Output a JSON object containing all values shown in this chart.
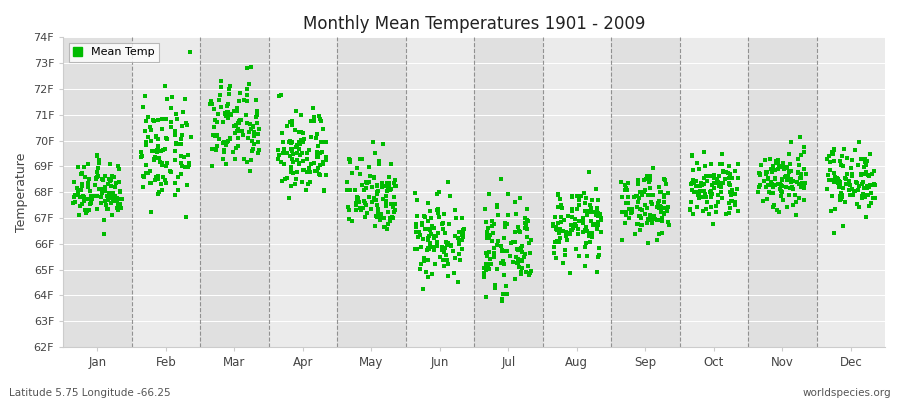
{
  "title": "Monthly Mean Temperatures 1901 - 2009",
  "xlabel": "",
  "ylabel": "Temperature",
  "footer_left": "Latitude 5.75 Longitude -66.25",
  "footer_right": "worldspecies.org",
  "legend_label": "Mean Temp",
  "ylim": [
    62,
    74
  ],
  "yticks": [
    62,
    63,
    64,
    65,
    66,
    67,
    68,
    69,
    70,
    71,
    72,
    73,
    74
  ],
  "ytick_labels": [
    "62F",
    "63F",
    "64F",
    "65F",
    "66F",
    "67F",
    "68F",
    "69F",
    "70F",
    "71F",
    "72F",
    "73F",
    "74F"
  ],
  "months": [
    "Jan",
    "Feb",
    "Mar",
    "Apr",
    "May",
    "Jun",
    "Jul",
    "Aug",
    "Sep",
    "Oct",
    "Nov",
    "Dec"
  ],
  "dot_color": "#00bb00",
  "background_color": "#ffffff",
  "band_colors": [
    "#e0e0e0",
    "#ebebeb"
  ],
  "n_years": 109,
  "month_means": [
    68.0,
    69.5,
    70.5,
    69.5,
    68.0,
    66.3,
    65.8,
    66.7,
    67.5,
    68.1,
    68.5,
    68.5
  ],
  "month_stds": [
    0.55,
    1.0,
    0.9,
    0.85,
    0.8,
    0.85,
    0.8,
    0.7,
    0.6,
    0.65,
    0.65,
    0.65
  ],
  "random_seed": 12345,
  "marker_size": 2.5,
  "dpi": 100,
  "figsize": [
    9.0,
    4.0
  ]
}
